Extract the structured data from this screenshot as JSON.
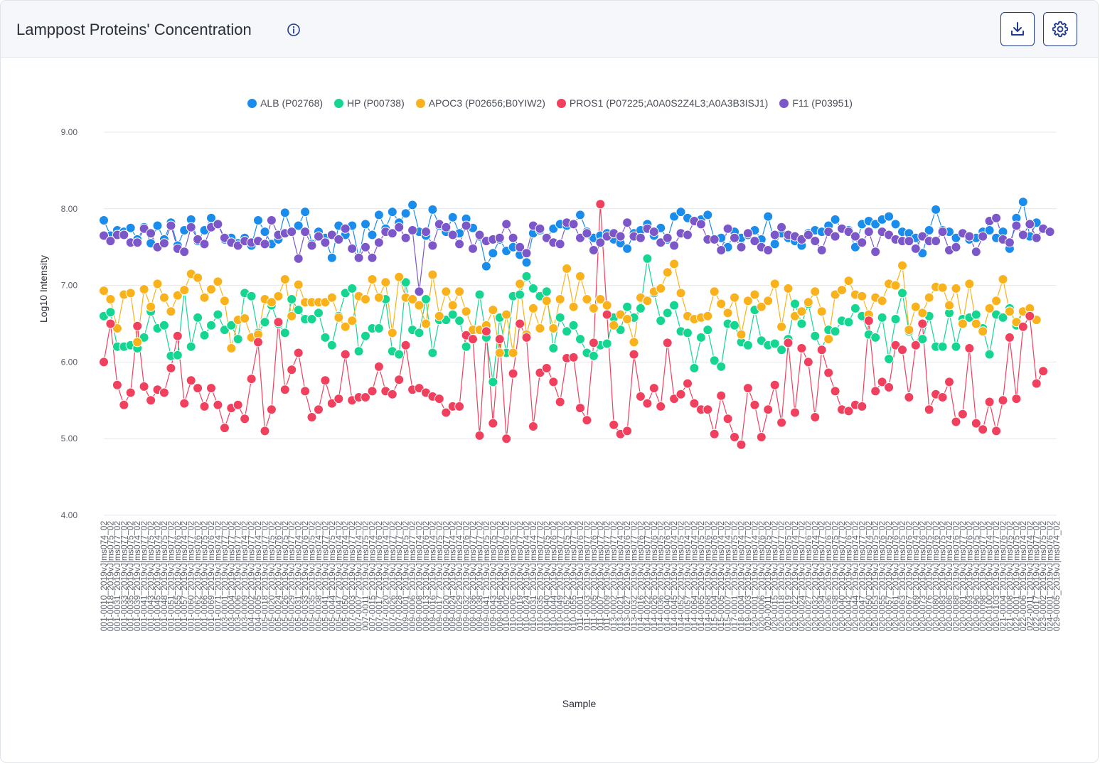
{
  "header": {
    "title": "Lamppost Proteins' Concentration",
    "info_icon": "info-circle-icon",
    "download_icon": "download-icon",
    "settings_icon": "gear-icon"
  },
  "chart_data": {
    "type": "scatter-line",
    "xlabel": "Sample",
    "ylabel": "Log10 Intensity",
    "ylim": [
      4,
      9
    ],
    "yticks": [
      "9.00",
      "8.00",
      "7.00",
      "6.00",
      "5.00",
      "4.00"
    ],
    "grid": true,
    "legend_position": "top-center",
    "samples": [
      "001-0010_2019vJ|ms074_02",
      "001-0018_2019vJ|ms075_02",
      "001-0031_2019vJ|ms077_02",
      "001-0033_2019vJ|ms077_02",
      "001-0035_2019vJ|ms075_02",
      "001-0039_2019vJ|ms074_02",
      "001-0041_2019vJ|ms077_02",
      "001-0043_2019vJ|ms075_02",
      "001-0045_2019vJ|ms074_02",
      "001-0048_2019vJ|ms075_02",
      "001-0051_2019vJ|ms077_02",
      "001-0055_2019vJ|ms076_02",
      "001-0057_2019vJ|ms074_02",
      "001-0060_2019vJ|ms077_02",
      "001-0062_2019vJ|ms076_02",
      "001-0066_2019vJ|ms075_02",
      "001-0069_2019vJ|ms076_02",
      "001-0071_2019vJ|ms074_02",
      "003-0001_2019vJ|ms077_02",
      "003-0004_2019vJ|ms077_02",
      "003-0006_2019vJ|ms077_02",
      "003-0009_2019vJ|ms074_02",
      "004-0002_2019vJ|ms077_02",
      "004-0005_2019vJ|ms074_02",
      "005-0018_2019vJ|ms077_02",
      "005-0020_2019vJ|ms075_02",
      "005-0024_2019vJ|ms076_02",
      "005-0026_2019vJ|ms075_02",
      "005-0029_2019vJ|ms077_02",
      "005-0031_2019vJ|ms074_02",
      "005-0033_2019vJ|ms076_02",
      "005-0035_2019vJ|ms075_02",
      "005-0038_2019vJ|ms074_02",
      "005-0041_2019vJ|ms077_02",
      "005-0044_2019vJ|ms075_02",
      "005-0047_2019vJ|ms074_02",
      "005-0050_2019vJ|ms074_02",
      "007-0003_2019vJ|ms077_02",
      "007-0007_2019vJ|ms074_02",
      "007-0011_2019vJ|ms075_02",
      "007-0015_2019vJ|ms074_02",
      "007-0017_2019vJ|ms076_02",
      "007-0020_2019vJ|ms074_02",
      "007-0026_2019vJ|ms077_02",
      "007-0028_2019vJ|ms077_02",
      "009-0001_2019vJ|ms075_02",
      "009-0006_2019vJ|ms077_02",
      "009-0008_2019vJ|ms074_02",
      "009-0013_2019vJ|ms076_02",
      "009-0016_2019vJ|ms074_02",
      "009-0017_2019vJ|ms075_02",
      "009-0020_2019vJ|ms077_02",
      "009-0024_2019vJ|ms074_02",
      "009-0029_2019vJ|ms074_02",
      "009-0032_2019vJ|ms076_02",
      "009-0036_2019vJ|ms077_02",
      "009-0038_2019vJ|ms077_02",
      "009-0041_2019vJ|ms075_02",
      "009-0043_2019vJ|ms075_02",
      "009-0046_2019vJ|ms077_02",
      "010-0002_2019vJ|ms076_02",
      "010-0006_2019vJ|ms075_02",
      "010-0019_2019vJ|ms077_02",
      "010-0024_2019vJ|ms074_02",
      "010-0031_2019vJ|ms074_02",
      "010-0035_2019vJ|ms077_02",
      "010-0040_2019vJ|ms075_02",
      "010-0044_2019vJ|ms076_02",
      "010-0049_2019vJ|ms077_02",
      "010-0052_2019vJ|ms075_02",
      "010-0055_2019vJ|ms077_02",
      "011-0001_2019vJ|ms076_02",
      "011-0003_2019vJ|ms077_02",
      "011-0005_2019vJ|ms076_02",
      "011-0007_2019vJ|ms077_02",
      "011-0009_2019vJ|ms077_02",
      "013-0002_2019vJ|ms077_02",
      "013-0021_2019vJ|ms074_02",
      "013-0027_2019vJ|ms076_02",
      "013-0032_2019vJ|ms077_02",
      "014-0016_2019vJ|ms076_02",
      "014-0022_2019vJ|ms077_02",
      "014-0026_2019vJ|ms076_02",
      "014-0036_2019vJ|ms075_02",
      "014-0040_2019vJ|ms076_02",
      "014-0045_2019vJ|ms074_02",
      "014-0052_2019vJ|ms075_02",
      "014-0057_2019vJ|ms074_02",
      "014-0064_2019vJ|ms074_02",
      "014-0065_2019vJ|ms075_02",
      "014-0068_2019vJ|ms076_02",
      "015-0004_2019vJ|ms076_02",
      "015-0005_2019vJ|ms074_02",
      "015-0007_2019vJ|ms074_02",
      "017-0001_2019vJ|ms075_02",
      "018-0004_2019vJ|ms074_02",
      "019-0003_2019vJ|ms077_02",
      "020-0001_2019vJ|ms074_02",
      "020-0006_2019vJ|ms076_02",
      "020-0011_2019vJ|ms075_02",
      "020-0015_2019vJ|ms077_02",
      "020-0018_2019vJ|ms077_02",
      "020-0019_2019vJ|ms075_02",
      "020-0022_2019vJ|ms074_02",
      "020-0024_2019vJ|ms077_02",
      "020-0027_2019vJ|ms076_02",
      "020-0032_2019vJ|ms074_02",
      "020-0034_2019vJ|ms077_02",
      "020-0036_2019vJ|ms076_02",
      "020-0038_2019vJ|ms075_02",
      "020-0040_2019vJ|ms077_02",
      "020-0042_2019vJ|ms076_02",
      "020-0044_2019vJ|ms074_02",
      "020-0047_2019vJ|ms077_02",
      "020-0050_2019vJ|ms074_02",
      "020-0053_2019vJ|ms075_02",
      "020-0055_2019vJ|ms076_02",
      "020-0057_2019vJ|ms075_02",
      "020-0061_2019vJ|ms076_02",
      "020-0063_2019vJ|ms075_02",
      "020-0067_2019vJ|ms076_02",
      "020-0069_2019vJ|ms074_02",
      "020-0073_2019vJ|ms076_02",
      "020-0076_2019vJ|ms075_02",
      "020-0080_2019vJ|ms076_02",
      "020-0083_2019vJ|ms075_02",
      "020-0086_2019vJ|ms074_02",
      "020-0088_2019vJ|ms076_02",
      "020-0091_2019vJ|ms077_02",
      "020-0093_2019vJ|ms076_02",
      "020-0096_2019vJ|ms075_02",
      "020-0098_2019vJ|ms077_02",
      "020-0100_2019vJ|ms074_02",
      "020-0103_2019vJ|ms077_02",
      "021-0004_2019vJ|ms076_02",
      "021-0008_2019vJ|ms075_02",
      "022-0001_2019vJ|ms075_02",
      "022-0006_2019vJ|ms074_02",
      "022-0011_2019vJ|ms074_02",
      "022-0017_2019vJ|ms077_02",
      "023-0002_2019vJ|ms075_02",
      "024-0001_2019vJ|ms076_02",
      "029-0005_2019vJ|ms074_02"
    ],
    "series": [
      {
        "name": "ALB (P02768)",
        "color": "#1a8ceb",
        "values": [
          7.85,
          7.65,
          7.72,
          7.7,
          7.75,
          7.6,
          7.76,
          7.55,
          7.78,
          7.6,
          7.82,
          7.52,
          7.72,
          7.86,
          7.58,
          7.72,
          7.88,
          7.8,
          7.6,
          7.62,
          7.55,
          7.62,
          7.52,
          7.85,
          7.7,
          7.54,
          7.6,
          7.95,
          7.7,
          7.78,
          7.96,
          7.54,
          7.7,
          7.62,
          7.36,
          7.78,
          7.66,
          7.78,
          7.36,
          7.8,
          7.66,
          7.92,
          7.74,
          7.96,
          7.82,
          7.94,
          8.05,
          7.7,
          7.65,
          7.99,
          7.78,
          7.7,
          7.89,
          7.68,
          7.87,
          7.75,
          7.64,
          7.25,
          7.42,
          7.6,
          7.45,
          7.5,
          7.4,
          7.3,
          7.68,
          7.72,
          7.62,
          7.74,
          7.8,
          7.78,
          7.8,
          7.92,
          7.7,
          7.62,
          7.65,
          7.68,
          7.6,
          7.55,
          7.48,
          7.68,
          7.72,
          7.8,
          7.65,
          7.75,
          7.6,
          7.9,
          7.96,
          7.88,
          7.84,
          7.86,
          7.92,
          7.6,
          7.62,
          7.5,
          7.7,
          7.62,
          7.66,
          7.72,
          7.6,
          7.9,
          7.54,
          7.68,
          7.62,
          7.58,
          7.52,
          7.68,
          7.72,
          7.7,
          7.78,
          7.86,
          7.74,
          7.72,
          7.5,
          7.8,
          7.84,
          7.8,
          7.86,
          7.9,
          7.8,
          7.7,
          7.68,
          7.62,
          7.42,
          7.72,
          7.99,
          7.72,
          7.7,
          7.62,
          7.68,
          7.6,
          7.62,
          7.7,
          7.72,
          7.62,
          7.7,
          7.48,
          7.88,
          8.09,
          7.64,
          7.82
        ]
      },
      {
        "name": "HP (P00738)",
        "color": "#15d690",
        "values": [
          6.6,
          6.65,
          6.2,
          6.2,
          6.22,
          6.18,
          6.32,
          6.66,
          6.44,
          6.48,
          6.08,
          6.09,
          6.93,
          6.2,
          6.58,
          6.35,
          6.48,
          6.62,
          6.42,
          6.48,
          6.3,
          6.9,
          6.86,
          6.38,
          6.52,
          6.74,
          6.5,
          6.38,
          6.82,
          6.68,
          6.56,
          6.56,
          6.64,
          6.32,
          6.22,
          6.6,
          6.9,
          6.96,
          6.14,
          6.34,
          6.44,
          6.44,
          6.82,
          6.14,
          6.1,
          7.04,
          6.42,
          6.38,
          6.82,
          6.12,
          6.55,
          6.55,
          6.62,
          6.54,
          6.2,
          6.3,
          6.88,
          6.32,
          5.74,
          6.58,
          6.12,
          6.86,
          6.88,
          7.12,
          6.96,
          6.86,
          6.92,
          6.18,
          6.58,
          6.4,
          6.48,
          6.3,
          6.12,
          6.08,
          6.22,
          6.24,
          6.58,
          6.42,
          6.72,
          6.58,
          6.7,
          7.35,
          6.9,
          6.54,
          6.64,
          6.74,
          6.4,
          6.38,
          5.92,
          6.32,
          6.42,
          6.02,
          5.94,
          6.5,
          6.48,
          6.26,
          6.22,
          6.68,
          6.28,
          6.22,
          6.24,
          6.16,
          6.3,
          6.76,
          6.5,
          6.76,
          6.34,
          6.16,
          6.42,
          6.4,
          6.54,
          6.52,
          6.7,
          6.6,
          6.36,
          6.32,
          6.58,
          6.04,
          6.56,
          6.9,
          6.4,
          6.22,
          6.3,
          6.6,
          6.2,
          6.2,
          6.64,
          6.2,
          6.56,
          6.58,
          6.62,
          6.44,
          6.1,
          6.62,
          6.58,
          6.7,
          6.48,
          6.66
        ]
      },
      {
        "name": "APOC3 (P02656;B0YIW2)",
        "color": "#f9b21c",
        "values": [
          6.93,
          6.82,
          6.44,
          6.88,
          6.9,
          6.26,
          6.95,
          6.72,
          7.02,
          6.84,
          6.66,
          6.87,
          6.94,
          7.15,
          7.1,
          6.84,
          6.95,
          7.05,
          6.8,
          6.18,
          6.55,
          6.57,
          6.32,
          6.36,
          6.82,
          6.78,
          6.86,
          7.08,
          6.6,
          7.01,
          6.78,
          6.78,
          6.78,
          6.78,
          6.84,
          6.58,
          6.46,
          6.54,
          6.86,
          6.82,
          7.08,
          6.84,
          7.04,
          6.38,
          7.11,
          6.84,
          6.82,
          6.74,
          6.5,
          7.14,
          6.6,
          6.92,
          6.74,
          6.92,
          6.66,
          6.42,
          6.42,
          6.48,
          6.68,
          6.12,
          6.62,
          6.12,
          7.02,
          6.36,
          6.7,
          6.44,
          6.8,
          6.44,
          6.82,
          7.22,
          6.72,
          7.12,
          6.82,
          6.7,
          6.82,
          6.74,
          6.48,
          6.62,
          6.56,
          6.26,
          6.84,
          6.8,
          6.92,
          6.96,
          7.17,
          7.28,
          6.9,
          6.6,
          6.56,
          6.58,
          6.6,
          6.92,
          6.76,
          6.64,
          6.84,
          6.36,
          6.8,
          6.88,
          6.72,
          6.8,
          7.02,
          6.46,
          6.96,
          6.6,
          6.66,
          6.78,
          6.92,
          6.66,
          6.3,
          6.88,
          6.94,
          7.06,
          6.88,
          6.86,
          6.62,
          6.84,
          6.8,
          7.02,
          7.0,
          7.26,
          6.42,
          6.72,
          6.64,
          6.84,
          6.98,
          6.97,
          6.74,
          6.96,
          6.5,
          7.02,
          6.5,
          6.4,
          6.7,
          6.8,
          7.08,
          6.66,
          6.52,
          6.66,
          6.7,
          6.55
        ]
      },
      {
        "name": "PROS1 (P07225;A0A0S2Z4L3;A0A3B3ISJ1)",
        "color": "#f0405d",
        "values": [
          6.0,
          6.5,
          5.7,
          5.44,
          5.6,
          6.47,
          5.68,
          5.5,
          5.64,
          5.6,
          5.92,
          6.34,
          5.46,
          5.76,
          5.66,
          5.42,
          5.66,
          5.44,
          5.14,
          5.4,
          5.44,
          5.26,
          5.78,
          6.26,
          5.1,
          5.38,
          6.52,
          5.64,
          5.9,
          6.12,
          5.62,
          5.28,
          5.38,
          5.76,
          5.46,
          5.52,
          6.1,
          5.5,
          5.54,
          5.54,
          5.62,
          5.94,
          5.62,
          5.58,
          5.77,
          6.22,
          5.64,
          5.66,
          5.6,
          5.55,
          5.52,
          5.34,
          5.42,
          5.42,
          6.35,
          6.3,
          5.04,
          6.4,
          5.2,
          6.3,
          5.0,
          5.85,
          6.5,
          6.32,
          5.16,
          5.86,
          5.92,
          5.74,
          5.48,
          6.05,
          6.06,
          5.4,
          5.24,
          6.25,
          8.06,
          6.62,
          5.18,
          5.06,
          5.1,
          6.1,
          5.55,
          5.46,
          5.66,
          5.42,
          6.25,
          5.52,
          5.58,
          5.72,
          5.46,
          5.38,
          5.38,
          5.06,
          5.56,
          5.26,
          5.02,
          4.92,
          5.66,
          5.44,
          5.02,
          5.38,
          5.7,
          5.21,
          6.25,
          5.34,
          6.18,
          6.0,
          5.28,
          6.16,
          5.86,
          5.62,
          5.38,
          5.36,
          5.44,
          5.42,
          6.54,
          5.62,
          5.74,
          5.67,
          6.22,
          6.16,
          5.54,
          6.22,
          6.5,
          5.38,
          5.58,
          5.54,
          5.74,
          5.22,
          5.32,
          6.18,
          5.2,
          5.12,
          5.48,
          5.1,
          5.5,
          6.32,
          5.52,
          6.46,
          6.6,
          5.72,
          5.88
        ]
      },
      {
        "name": "F11 (P03951)",
        "color": "#7c57c9",
        "values": [
          7.65,
          7.58,
          7.66,
          7.66,
          7.56,
          7.56,
          7.74,
          7.68,
          7.5,
          7.55,
          7.78,
          7.48,
          7.44,
          7.76,
          7.6,
          7.54,
          7.76,
          7.8,
          7.62,
          7.56,
          7.52,
          7.58,
          7.56,
          7.58,
          7.54,
          7.85,
          7.66,
          7.68,
          7.7,
          7.35,
          7.7,
          7.52,
          7.64,
          7.56,
          7.66,
          7.6,
          7.74,
          7.48,
          7.36,
          7.5,
          7.36,
          7.56,
          7.7,
          7.68,
          7.76,
          7.62,
          7.72,
          6.92,
          7.7,
          7.52,
          7.8,
          7.76,
          7.66,
          7.54,
          7.78,
          7.48,
          7.66,
          7.58,
          7.6,
          7.62,
          7.8,
          7.62,
          7.5,
          7.42,
          7.78,
          7.74,
          7.62,
          7.56,
          7.54,
          7.82,
          7.8,
          7.62,
          7.68,
          7.46,
          7.56,
          7.64,
          7.68,
          7.64,
          7.82,
          7.64,
          7.62,
          7.74,
          7.7,
          7.56,
          7.62,
          7.52,
          7.68,
          7.66,
          7.84,
          7.8,
          7.6,
          7.6,
          7.46,
          7.74,
          7.62,
          7.5,
          7.68,
          7.58,
          7.5,
          7.46,
          7.66,
          7.76,
          7.66,
          7.64,
          7.6,
          7.66,
          7.58,
          7.46,
          7.7,
          7.64,
          7.74,
          7.7,
          7.64,
          7.56,
          7.7,
          7.44,
          7.7,
          7.66,
          7.6,
          7.58,
          7.58,
          7.48,
          7.64,
          7.58,
          7.58,
          7.7,
          7.46,
          7.5,
          7.68,
          7.64,
          7.44,
          7.64,
          7.84,
          7.88,
          7.6,
          7.56,
          7.78,
          7.66,
          7.8,
          7.62,
          7.74,
          7.7
        ]
      }
    ]
  }
}
